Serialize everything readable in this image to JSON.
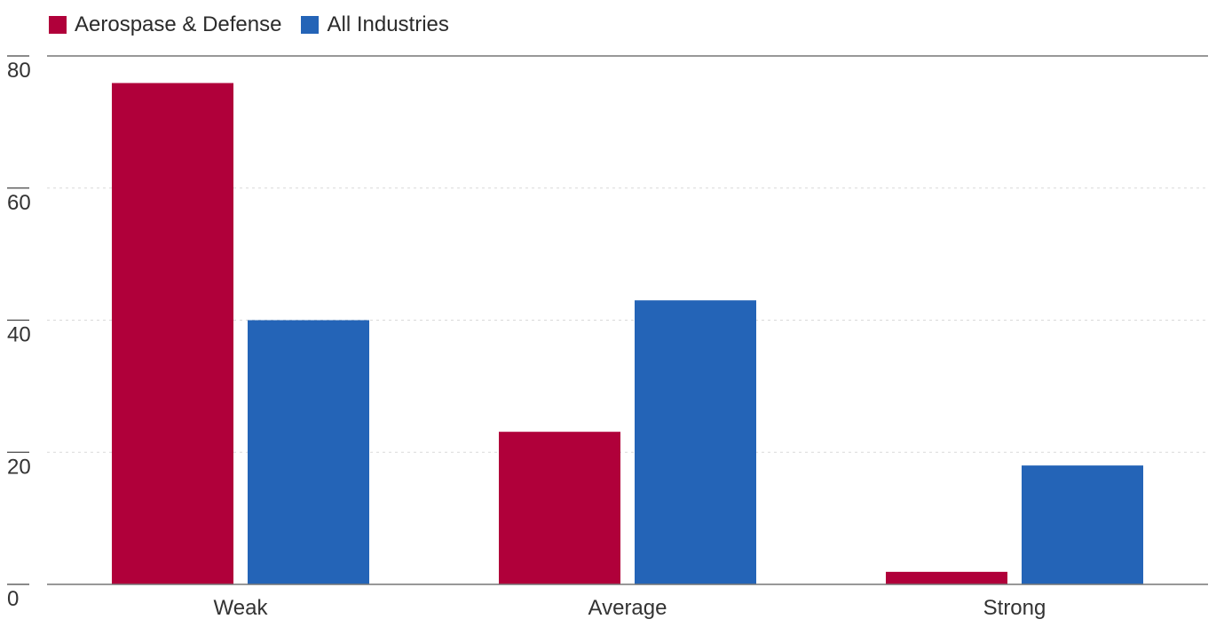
{
  "chart_data": {
    "type": "bar",
    "categories": [
      "Weak",
      "Average",
      "Strong"
    ],
    "series": [
      {
        "name": "Aerospase & Defense",
        "color": "#b0003a",
        "values": [
          75.9,
          23.1,
          1.9
        ]
      },
      {
        "name": "All Industries",
        "color": "#2464b7",
        "values": [
          40,
          43,
          18
        ]
      }
    ],
    "ylim": [
      0,
      80
    ],
    "yticks": [
      0,
      20,
      40,
      60,
      80
    ],
    "grid": true,
    "legend": "top-left",
    "title": "",
    "xlabel": "",
    "ylabel": ""
  }
}
